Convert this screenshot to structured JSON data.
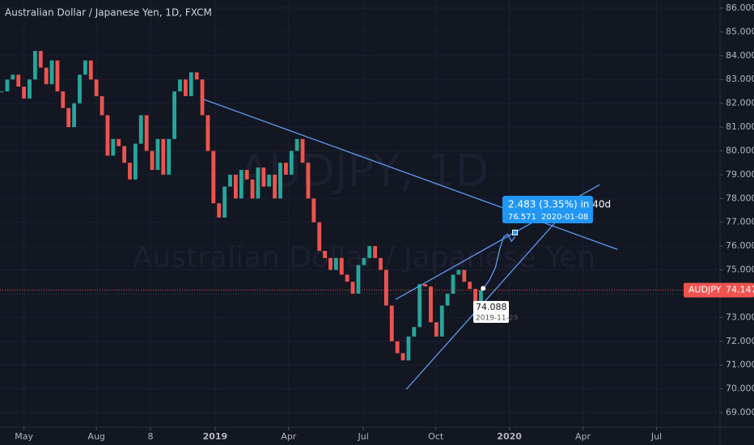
{
  "chart_data": {
    "type": "candlestick",
    "title": "Australian Dollar / Japanese Yen, 1D, FXCM",
    "watermark": {
      "symbol": "AUDJPY, 1D",
      "description": "Australian Dollar / Japanese Yen"
    },
    "series": [
      {
        "name": "AUDJPY",
        "up_color": "#26a69a",
        "down_color": "#ef5350",
        "values": [
          82.5,
          83.0,
          83.2,
          82.7,
          82.2,
          83.0,
          84.2,
          83.5,
          82.8,
          83.8,
          82.5,
          81.8,
          81.0,
          82.0,
          83.2,
          83.8,
          83.0,
          82.3,
          81.5,
          79.8,
          80.5,
          80.2,
          79.5,
          78.8,
          80.3,
          81.5,
          80.0,
          79.2,
          80.5,
          79.0,
          80.5,
          82.5,
          83.0,
          82.3,
          83.3,
          83.0,
          81.5,
          80.0,
          77.8,
          77.2,
          78.5,
          79.0,
          78.0,
          79.2,
          78.8,
          78.0,
          79.3,
          78.5,
          79.0,
          78.0,
          79.5,
          79.0,
          80.0,
          80.5,
          79.5,
          78.0,
          77.0,
          75.8,
          75.5,
          75.0,
          75.5,
          74.8,
          74.5,
          74.0,
          75.2,
          75.5,
          76.0,
          75.5,
          75.0,
          73.5,
          72.0,
          71.5,
          71.2,
          72.2,
          72.6,
          74.4,
          74.3,
          72.8,
          72.2,
          73.5,
          74.0,
          74.8,
          75.0,
          74.5,
          74.2,
          73.6,
          74.147
        ]
      }
    ],
    "last_price": 74.147,
    "xlim": [
      -0.3,
      128.9
    ],
    "xticks": [
      {
        "value": 4,
        "label": "May"
      },
      {
        "value": 17,
        "label": "Aug"
      },
      {
        "value": 26.7,
        "label": "8"
      },
      {
        "value": 38.3,
        "label": "2019"
      },
      {
        "value": 51.5,
        "label": "Apr"
      },
      {
        "value": 64.9,
        "label": "Jul"
      },
      {
        "value": 77.9,
        "label": "Oct"
      },
      {
        "value": 91.1,
        "label": "2020"
      },
      {
        "value": 104.3,
        "label": "Apr"
      },
      {
        "value": 117.5,
        "label": "Jul"
      }
    ],
    "ylim": [
      68.39,
      86.34
    ],
    "yticks": [
      {
        "value": 69,
        "label": "69.000"
      },
      {
        "value": 70,
        "label": "70.000"
      },
      {
        "value": 71,
        "label": "71.000"
      },
      {
        "value": 72,
        "label": "72.000"
      },
      {
        "value": 73,
        "label": "73.000"
      },
      {
        "value": 74,
        "label": "74.000"
      },
      {
        "value": 75,
        "label": "75.000"
      },
      {
        "value": 76,
        "label": "76.000"
      },
      {
        "value": 77,
        "label": "77.000"
      },
      {
        "value": 78,
        "label": "78.000"
      },
      {
        "value": 79,
        "label": "79.000"
      },
      {
        "value": 80,
        "label": "80.000"
      },
      {
        "value": 81,
        "label": "81.000"
      },
      {
        "value": 82,
        "label": "82.000"
      },
      {
        "value": 83,
        "label": "83.000"
      },
      {
        "value": 84,
        "label": "84.000"
      },
      {
        "value": 85,
        "label": "85.000"
      },
      {
        "value": 86,
        "label": "86.000"
      }
    ],
    "drawings": [
      {
        "color": "#5b9cf6",
        "points": [
          [
            36.3,
            82.16
          ],
          [
            110.5,
            75.86
          ]
        ]
      },
      {
        "color": "#5b9cf6",
        "points": [
          [
            70.7,
            73.76
          ],
          [
            107.3,
            78.58
          ]
        ]
      },
      {
        "color": "#5b9cf6",
        "points": [
          [
            72.6,
            69.98
          ],
          [
            99.7,
            77.09
          ]
        ]
      },
      {
        "color": "#5b9cf6",
        "points": [
          [
            86.4,
            74.2
          ],
          [
            87.6,
            74.6
          ],
          [
            88.6,
            75.1
          ],
          [
            89.4,
            75.9
          ],
          [
            90.1,
            76.4
          ],
          [
            90.8,
            76.5
          ],
          [
            91.5,
            76.2
          ],
          [
            92.1,
            76.4
          ]
        ]
      }
    ],
    "projection": {
      "change": "2.483 (3.35%) in 40d",
      "price": "76.571",
      "date": "2020-01-08",
      "anchor": [
        92.1,
        76.571
      ]
    },
    "point_label": {
      "price": "74.088",
      "date": "2019-11-29",
      "anchor": [
        86.4,
        74.088
      ]
    }
  }
}
